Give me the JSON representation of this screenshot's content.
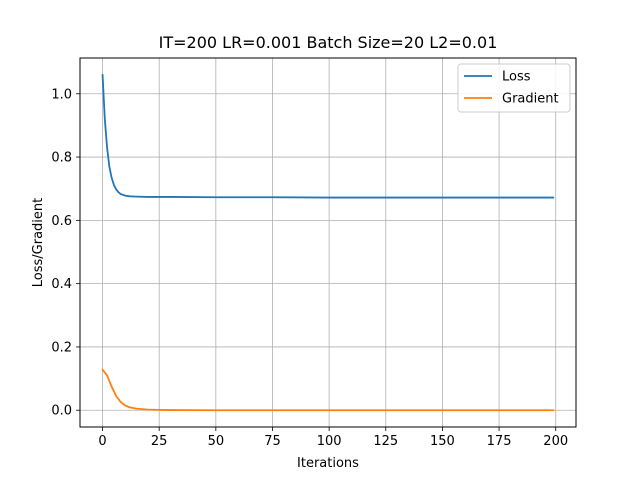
{
  "chart_data": {
    "type": "line",
    "title": "IT=200 LR=0.001 Batch Size=20 L2=0.01",
    "xlabel": "Iterations",
    "ylabel": "Loss/Gradient",
    "xlim": [
      -9.95,
      208.95
    ],
    "ylim": [
      -0.053,
      1.113
    ],
    "xticks": [
      0,
      25,
      50,
      75,
      100,
      125,
      150,
      175,
      200
    ],
    "yticks": [
      0.0,
      0.2,
      0.4,
      0.6,
      0.8,
      1.0
    ],
    "xtick_labels": [
      "0",
      "25",
      "50",
      "75",
      "100",
      "125",
      "150",
      "175",
      "200"
    ],
    "ytick_labels": [
      "0.0",
      "0.2",
      "0.4",
      "0.6",
      "0.8",
      "1.0"
    ],
    "grid": true,
    "legend_position": "top-right",
    "series": [
      {
        "name": "Loss",
        "color": "#1f77b4",
        "points": [
          [
            0,
            1.06
          ],
          [
            1,
            0.92
          ],
          [
            2,
            0.83
          ],
          [
            3,
            0.77
          ],
          [
            4,
            0.735
          ],
          [
            5,
            0.712
          ],
          [
            6,
            0.698
          ],
          [
            7,
            0.689
          ],
          [
            8,
            0.683
          ],
          [
            10,
            0.678
          ],
          [
            12,
            0.676
          ],
          [
            15,
            0.675
          ],
          [
            20,
            0.674
          ],
          [
            30,
            0.674
          ],
          [
            50,
            0.673
          ],
          [
            75,
            0.673
          ],
          [
            100,
            0.672
          ],
          [
            125,
            0.672
          ],
          [
            150,
            0.672
          ],
          [
            175,
            0.672
          ],
          [
            199,
            0.672
          ]
        ]
      },
      {
        "name": "Gradient",
        "color": "#ff7f0e",
        "points": [
          [
            0,
            0.128
          ],
          [
            2,
            0.11
          ],
          [
            4,
            0.075
          ],
          [
            6,
            0.045
          ],
          [
            8,
            0.026
          ],
          [
            10,
            0.015
          ],
          [
            12,
            0.009
          ],
          [
            15,
            0.005
          ],
          [
            20,
            0.002
          ],
          [
            25,
            0.001
          ],
          [
            30,
            0.0005
          ],
          [
            50,
            0.0
          ],
          [
            100,
            0.0
          ],
          [
            150,
            0.0
          ],
          [
            199,
            0.0
          ]
        ]
      }
    ]
  }
}
